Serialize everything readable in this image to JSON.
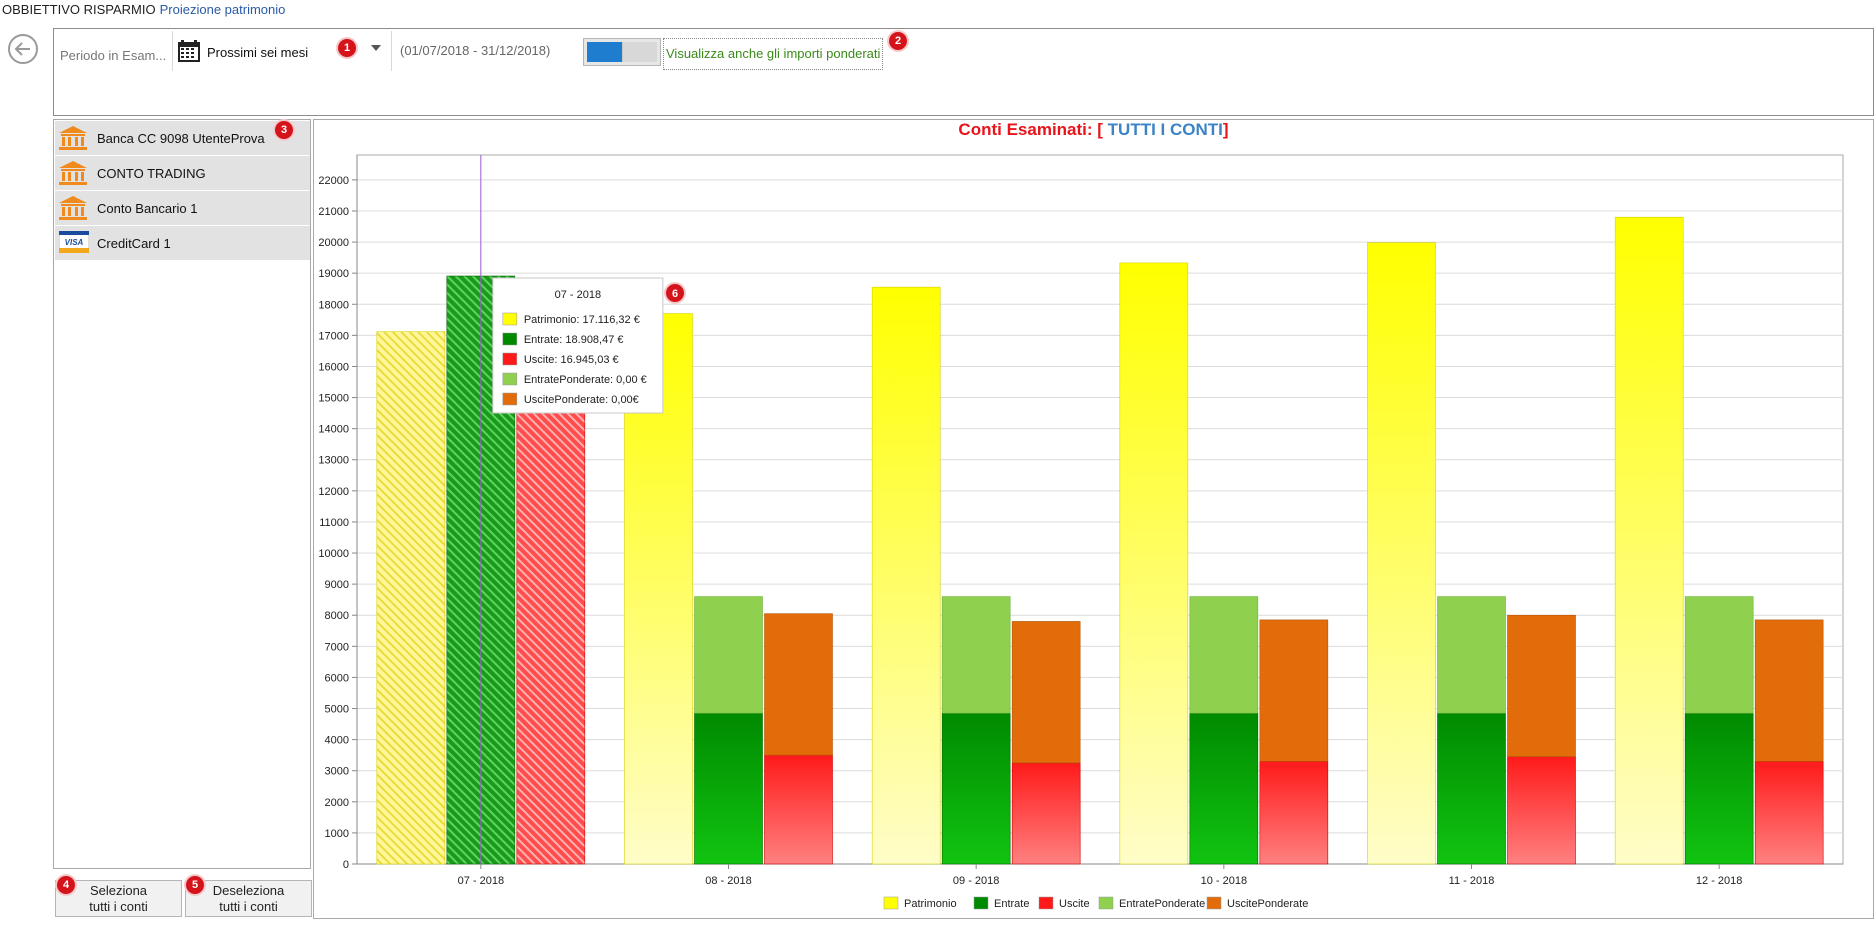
{
  "breadcrumb": {
    "section": "OBBIETTIVO RISPARMIO",
    "page": "Proiezione patrimonio"
  },
  "filter": {
    "period_label": "Periodo in Esam...",
    "period_value": "Prossimi sei mesi",
    "period_range": "(01/07/2018 - 31/12/2018)",
    "weighted_toggle_on": true,
    "weighted_label": "Visualizza anche gli importi ponderati"
  },
  "badges": [
    "1",
    "2",
    "3",
    "4",
    "5",
    "6"
  ],
  "accounts": [
    {
      "label": "Banca CC 9098 UtenteProva",
      "icon": "bank-icon"
    },
    {
      "label": "CONTO TRADING",
      "icon": "bank-icon"
    },
    {
      "label": "Conto Bancario 1",
      "icon": "bank-icon"
    },
    {
      "label": "CreditCard 1",
      "icon": "visa-card-icon"
    }
  ],
  "buttons": {
    "select_all": "Seleziona\ntutti i conti",
    "deselect_all": "Deseleziona\ntutti i conti"
  },
  "colors": {
    "patrimonio": "#ffff00",
    "entrate": "#008a00",
    "uscite": "#ff1a1a",
    "entrate_ponderate": "#8fd14f",
    "uscite_ponderate": "#e36c0a",
    "title_red": "#e8141c",
    "title_blue": "#3b83c6"
  },
  "chart_data": {
    "type": "bar",
    "title_prefix": "Conti Esaminati: ",
    "title_bracket_open": "[ ",
    "title_accounts": "TUTTI I CONTI",
    "title_bracket_close": "]",
    "categories": [
      "07 - 2018",
      "08 - 2018",
      "09 - 2018",
      "10 - 2018",
      "11 - 2018",
      "12 - 2018"
    ],
    "ylim": [
      0,
      22800
    ],
    "y_ticks": [
      0,
      1000,
      2000,
      3000,
      4000,
      5000,
      6000,
      7000,
      8000,
      9000,
      10000,
      11000,
      12000,
      13000,
      14000,
      15000,
      16000,
      17000,
      18000,
      19000,
      20000,
      21000,
      22000
    ],
    "grid": true,
    "legend_position": "bottom",
    "series": [
      {
        "name": "Patrimonio",
        "values": [
          17116.32,
          17700,
          18550,
          19330,
          19980,
          20800
        ],
        "stack": "patrimonio"
      },
      {
        "name": "Entrate",
        "values": [
          18908.47,
          4850,
          4850,
          4850,
          4850,
          4850
        ],
        "stack": "entrate"
      },
      {
        "name": "Uscite",
        "values": [
          16945.03,
          3500,
          3250,
          3300,
          3450,
          3300
        ],
        "stack": "uscite"
      },
      {
        "name": "EntratePonderate",
        "values": [
          0,
          3750,
          3750,
          3750,
          3750,
          3750
        ],
        "stack": "entrate"
      },
      {
        "name": "UscitePonderate",
        "values": [
          0,
          4550,
          4550,
          4550,
          4550,
          4550
        ],
        "stack": "uscite"
      }
    ],
    "tooltip": {
      "title": "07 - 2018",
      "rows": [
        "Patrimonio: 17.116,32 €",
        "Entrate: 18.908,47 €",
        "Uscite: 16.945,03 €",
        "EntratePonderate: 0,00 €",
        "UscitePonderate: 0,00€"
      ]
    }
  }
}
